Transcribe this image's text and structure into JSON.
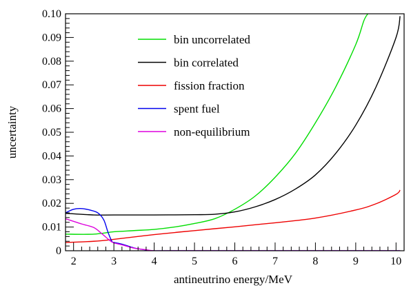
{
  "chart_data": {
    "type": "line",
    "xlabel": "antineutrino energy/MeV",
    "ylabel": "uncertainty",
    "xlim": [
      1.8,
      10.2
    ],
    "ylim": [
      0,
      0.1
    ],
    "x_ticks": [
      2,
      3,
      4,
      5,
      6,
      7,
      8,
      9,
      10
    ],
    "x_tick_labels": [
      "2",
      "3",
      "4",
      "5",
      "6",
      "7",
      "8",
      "9",
      "10"
    ],
    "y_ticks": [
      0,
      0.01,
      0.02,
      0.03,
      0.04,
      0.05,
      0.06,
      0.07,
      0.08,
      0.09,
      0.1
    ],
    "y_tick_labels": [
      "0",
      "0.01",
      "0.02",
      "0.03",
      "0.04",
      "0.05",
      "0.06",
      "0.07",
      "0.08",
      "0.09",
      "0.10"
    ],
    "grid": false,
    "legend_position": "top-center",
    "series": [
      {
        "name": "bin uncorrelated",
        "color": "#00dd00",
        "x": [
          1.8,
          2.5,
          3.0,
          3.5,
          4.0,
          4.5,
          5.0,
          5.5,
          6.0,
          6.5,
          7.0,
          7.5,
          8.0,
          8.5,
          9.0,
          9.2,
          9.3
        ],
        "y": [
          0.007,
          0.007,
          0.008,
          0.0085,
          0.009,
          0.01,
          0.0115,
          0.0135,
          0.0175,
          0.023,
          0.031,
          0.041,
          0.054,
          0.069,
          0.087,
          0.097,
          0.1
        ]
      },
      {
        "name": "bin correlated",
        "color": "#000000",
        "x": [
          1.8,
          2.5,
          3.0,
          4.0,
          5.0,
          5.5,
          6.0,
          6.5,
          7.0,
          7.5,
          8.0,
          8.5,
          9.0,
          9.5,
          10.0,
          10.1
        ],
        "y": [
          0.0158,
          0.0151,
          0.0151,
          0.0151,
          0.0152,
          0.0154,
          0.0164,
          0.0185,
          0.0216,
          0.026,
          0.032,
          0.041,
          0.053,
          0.069,
          0.09,
          0.099
        ]
      },
      {
        "name": "fission fraction",
        "color": "#ee0000",
        "x": [
          1.8,
          2.5,
          3.0,
          4.0,
          5.0,
          6.0,
          7.0,
          8.0,
          9.0,
          9.5,
          10.0,
          10.1
        ],
        "y": [
          0.0035,
          0.004,
          0.0048,
          0.0068,
          0.0085,
          0.0101,
          0.0118,
          0.0138,
          0.0172,
          0.0198,
          0.0238,
          0.0256
        ]
      },
      {
        "name": "spent fuel",
        "color": "#0000ee",
        "x": [
          1.8,
          2.0,
          2.2,
          2.4,
          2.6,
          2.75,
          2.85,
          2.95,
          3.0,
          3.2,
          3.5,
          3.8,
          4.0,
          4.5,
          10.1
        ],
        "y": [
          0.016,
          0.0175,
          0.0178,
          0.0172,
          0.016,
          0.013,
          0.008,
          0.004,
          0.0035,
          0.0028,
          0.0012,
          0.0003,
          0.0,
          0.0,
          0.0
        ]
      },
      {
        "name": "non-equilibrium",
        "color": "#dd00dd",
        "x": [
          1.8,
          2.2,
          2.5,
          2.7,
          2.9,
          3.0,
          3.2,
          3.5,
          3.8,
          4.0,
          4.5,
          10.1
        ],
        "y": [
          0.0135,
          0.0113,
          0.0098,
          0.0072,
          0.0043,
          0.0033,
          0.0025,
          0.0011,
          0.0004,
          0.0,
          0.0,
          0.0
        ]
      }
    ]
  }
}
